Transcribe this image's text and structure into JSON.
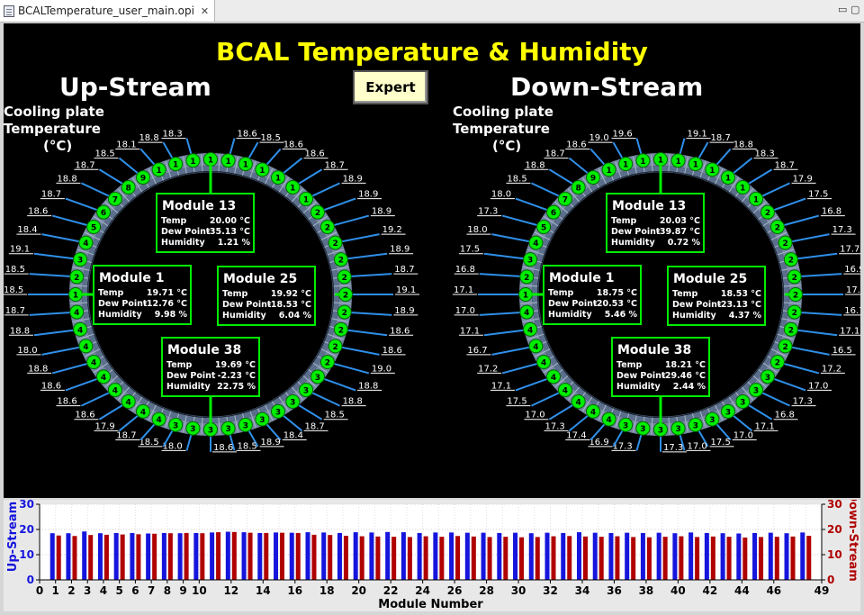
{
  "tab": {
    "filename": "BCALTemperature_user_main.opi"
  },
  "window_controls": {
    "minimize": "▭",
    "restore": "▢"
  },
  "page_title": "BCAL Temperature & Humidity",
  "expert_button": "Expert",
  "upstream": {
    "label": "Up-Stream",
    "cooling_label_1": "Cooling plate",
    "cooling_label_2": "Temperature",
    "cooling_label_3": "(°C)",
    "temps": [
      "18.6",
      "18.5",
      "18.6",
      "18.6",
      "18.7",
      "18.9",
      "18.9",
      "18.9",
      "19.2",
      "18.9",
      "18.7",
      "19.1",
      "18.9",
      "18.6",
      "18.6",
      "19.0",
      "18.8",
      "18.8",
      "18.5",
      "18.7",
      "18.4",
      "18.9",
      "18.5",
      "18.6",
      "18.0",
      "18.5",
      "18.7",
      "17.9",
      "18.6",
      "18.6",
      "18.6",
      "18.8",
      "18.0",
      "18.8",
      "18.7",
      "18.5",
      "18.5",
      "19.1",
      "18.4",
      "18.6",
      "18.7",
      "18.8",
      "18.7",
      "18.5",
      "18.1",
      "18.8",
      "18.3"
    ],
    "modules": [
      {
        "name": "Module 13",
        "temp": "20.00 °C",
        "dew": "-35.13 °C",
        "humidity": "1.21  %"
      },
      {
        "name": "Module 1",
        "temp": "19.71 °C",
        "dew": "-12.76 °C",
        "humidity": "9.98  %"
      },
      {
        "name": "Module 25",
        "temp": "19.92 °C",
        "dew": "-18.53 °C",
        "humidity": "6.04  %"
      },
      {
        "name": "Module 38",
        "temp": "19.69 °C",
        "dew": "-2.23  °C",
        "humidity": "22.75  %"
      }
    ]
  },
  "downstream": {
    "label": "Down-Stream",
    "cooling_label_1": "Cooling plate",
    "cooling_label_2": "Temperature",
    "cooling_label_3": "(°C)",
    "temps": [
      "19.1",
      "18.7",
      "18.8",
      "18.3",
      "18.7",
      "17.9",
      "17.5",
      "16.8",
      "17.3",
      "17.7",
      "16.9",
      "17.6",
      "16.7",
      "17.1",
      "16.5",
      "17.2",
      "17.0",
      "17.3",
      "16.8",
      "17.1",
      "17.0",
      "17.5",
      "17.0",
      "17.3",
      "17.3",
      "16.9",
      "17.4",
      "17.3",
      "17.0",
      "17.5",
      "17.1",
      "17.2",
      "16.7",
      "17.1",
      "17.0",
      "17.1",
      "16.8",
      "17.5",
      "18.0",
      "17.3",
      "18.0",
      "18.5",
      "18.8",
      "18.7",
      "18.6",
      "19.0",
      "19.6"
    ],
    "modules": [
      {
        "name": "Module 13",
        "temp": "20.03 °C",
        "dew": "-39.87 °C",
        "humidity": "0.72  %"
      },
      {
        "name": "Module 1",
        "temp": "18.75 °C",
        "dew": "-20.53 °C",
        "humidity": "5.46  %"
      },
      {
        "name": "Module 25",
        "temp": "18.53 °C",
        "dew": "-23.13 °C",
        "humidity": "4.37  %"
      },
      {
        "name": "Module 38",
        "temp": "18.21 °C",
        "dew": "-29.46 °C",
        "humidity": "2.44  %"
      }
    ]
  },
  "labels": {
    "temp": "Temp",
    "dew": "Dew Point",
    "humidity": "Humidity"
  },
  "colors": {
    "accent": "#ffff00",
    "module_green": "#00ee00",
    "upstream": "#1515dd",
    "downstream": "#b00000"
  },
  "chart_data": {
    "type": "bar",
    "xlabel": "Module Number",
    "ylabel_left": "Up-Stream",
    "ylabel_right": "Down-Stream",
    "xlim": [
      0,
      49
    ],
    "ylim": [
      0,
      30
    ],
    "yticks": [
      0,
      10,
      20,
      30
    ],
    "xticks": [
      0,
      1,
      2,
      3,
      4,
      5,
      6,
      7,
      8,
      9,
      10,
      12,
      14,
      16,
      18,
      20,
      22,
      24,
      26,
      28,
      30,
      32,
      34,
      36,
      38,
      40,
      42,
      44,
      46,
      49
    ],
    "series": [
      {
        "name": "Up-Stream",
        "values": [
          18.5,
          18.5,
          19.2,
          18.5,
          18.6,
          18.6,
          18.4,
          18.6,
          18.5,
          18.6,
          18.8,
          19.1,
          18.9,
          18.6,
          18.8,
          18.7,
          18.9,
          18.8,
          18.6,
          18.9,
          18.8,
          19.0,
          18.9,
          18.6,
          18.8,
          18.8,
          18.7,
          18.7,
          18.6,
          18.7,
          18.5,
          18.7,
          18.6,
          18.9,
          18.7,
          18.6,
          18.7,
          18.6,
          18.7,
          18.5,
          18.8,
          18.6,
          18.5,
          18.4,
          18.6,
          18.7,
          18.5,
          18.8
        ]
      },
      {
        "name": "Down-Stream",
        "values": [
          17.6,
          17.4,
          17.8,
          17.9,
          18.0,
          18.1,
          18.3,
          18.5,
          18.6,
          18.5,
          18.9,
          19.0,
          18.7,
          18.6,
          18.7,
          18.6,
          17.9,
          17.8,
          17.5,
          17.3,
          17.2,
          17.1,
          17.0,
          17.3,
          17.1,
          17.4,
          17.2,
          17.0,
          17.1,
          16.9,
          17.0,
          17.3,
          17.4,
          17.2,
          17.1,
          17.3,
          17.0,
          16.9,
          17.1,
          17.3,
          17.0,
          17.2,
          17.1,
          16.8,
          17.0,
          17.1,
          17.2,
          17.5
        ]
      }
    ]
  }
}
